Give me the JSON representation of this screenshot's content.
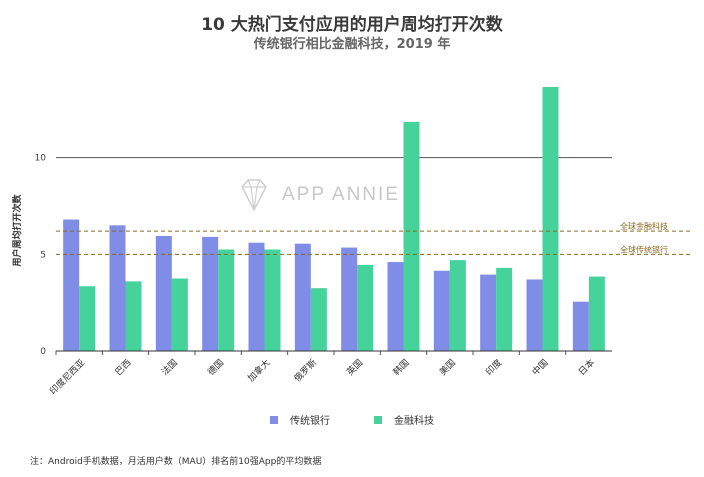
{
  "title": "10 大热门支付应用的用户周均打开次数",
  "subtitle": "传统银行相比金融科技，2019 年",
  "watermark": "APP ANNIE",
  "note": "注：Android手机数据，月活用户数（MAU）排名前10强App的平均数据",
  "colors": {
    "traditional_bank": "#7f8de6",
    "fintech": "#45d39b",
    "reference_line": "#8b6a1f",
    "axis": "#333333"
  },
  "chart_data": {
    "type": "bar",
    "title": "10 大热门支付应用的用户周均打开次数",
    "subtitle": "传统银行相比金融科技，2019 年",
    "xlabel": "",
    "ylabel": "用户周均打开次数",
    "ylim": [
      0,
      13.5
    ],
    "yticks": [
      0,
      5,
      10
    ],
    "grid": "horizontal line at 10",
    "legend_position": "bottom",
    "categories": [
      "印度尼西亚",
      "巴西",
      "法国",
      "德国",
      "加拿大",
      "俄罗斯",
      "英国",
      "韩国",
      "美国",
      "印度",
      "中国",
      "日本"
    ],
    "series": [
      {
        "name": "传统银行",
        "values": [
          6.8,
          6.5,
          5.95,
          5.9,
          5.6,
          5.55,
          5.35,
          4.6,
          4.15,
          3.95,
          3.7,
          2.55
        ]
      },
      {
        "name": "金融科技",
        "values": [
          3.35,
          3.6,
          3.75,
          5.25,
          5.25,
          3.25,
          4.45,
          11.85,
          4.7,
          4.3,
          14.0,
          3.85
        ]
      }
    ],
    "reference_lines": [
      {
        "label": "全球金融科技",
        "value": 6.2
      },
      {
        "label": "全球传统银行",
        "value": 5.0
      }
    ]
  }
}
